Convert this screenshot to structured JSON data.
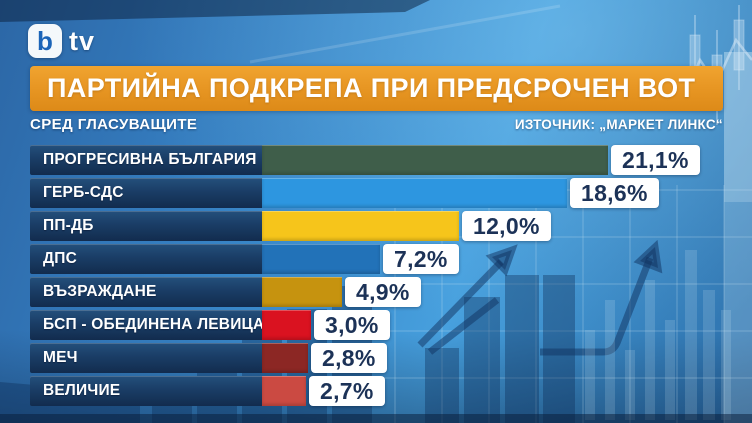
{
  "brand": {
    "channel": "bTV",
    "logo_square_letter": "b",
    "logo_text": "tv"
  },
  "header": {
    "title": "ПАРТИЙНА ПОДКРЕПА ПРИ ПРЕДСРОЧЕН ВОТ",
    "subtitle": "СРЕД ГЛАСУВАЩИТЕ",
    "source": "ИЗТОЧНИК: „МАРКЕТ ЛИНКС“"
  },
  "colors": {
    "banner_orange": "#e89724",
    "label_navy": "#1a3d66",
    "value_text_navy": "#1c3257",
    "value_box_bg": "#ffffff",
    "background_blue": "#3c8ecf"
  },
  "chart_data": {
    "type": "bar",
    "orientation": "horizontal",
    "title": "ПАРТИЙНА ПОДКРЕПА ПРИ ПРЕДСРОЧЕН ВОТ",
    "subtitle": "СРЕД ГЛАСУВАЩИТЕ",
    "source": "ИЗТОЧНИК: „МАРКЕТ ЛИНКС“",
    "unit": "%",
    "categories": [
      "ПРОГРЕСИВНА БЪЛГАРИЯ",
      "ГЕРБ-СДС",
      "ПП-ДБ",
      "ДПС",
      "ВЪЗРАЖДАНЕ",
      "БСП - ОБЕДИНЕНА ЛЕВИЦА",
      "МЕЧ",
      "ВЕЛИЧИЕ"
    ],
    "values": [
      21.1,
      18.6,
      12.0,
      7.2,
      4.9,
      3.0,
      2.8,
      2.7
    ],
    "value_labels": [
      "21,1%",
      "18,6%",
      "12,0%",
      "7,2%",
      "4,9%",
      "3,0%",
      "2,8%",
      "2,7%"
    ],
    "bar_colors": [
      "#3f5e4a",
      "#2d96e0",
      "#f6c51b",
      "#2272b8",
      "#c6930f",
      "#da1220",
      "#8c2724",
      "#cb4a42"
    ],
    "xlim": [
      0,
      28.1
    ],
    "axis_visible": false,
    "grid": false,
    "legend": false
  }
}
